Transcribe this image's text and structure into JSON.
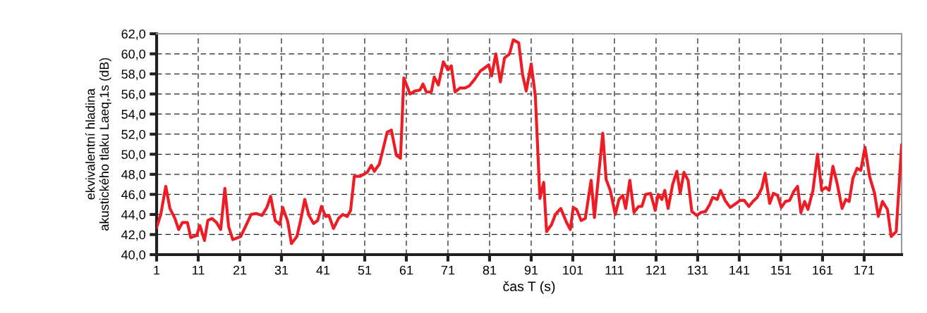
{
  "chart_data": {
    "type": "line",
    "xlabel": "čas T (s)",
    "ylabel": "ekvivalentní hladina\nakustického tlaku Laeq,1s (dB)",
    "xlim": [
      1,
      180
    ],
    "xticks": [
      1,
      11,
      21,
      31,
      41,
      51,
      61,
      71,
      81,
      91,
      101,
      111,
      121,
      131,
      141,
      151,
      161,
      171
    ],
    "ylim": [
      40,
      62
    ],
    "yticks": [
      {
        "value": 40,
        "label": "40,0"
      },
      {
        "value": 42,
        "label": "42,0"
      },
      {
        "value": 44,
        "label": "44,0"
      },
      {
        "value": 46,
        "label": "46,0"
      },
      {
        "value": 48,
        "label": "48,0"
      },
      {
        "value": 50,
        "label": "50,0"
      },
      {
        "value": 52,
        "label": "52,0"
      },
      {
        "value": 54,
        "label": "54,0"
      },
      {
        "value": 56,
        "label": "56,0"
      },
      {
        "value": 58,
        "label": "58,0"
      },
      {
        "value": 60,
        "label": "60,0"
      },
      {
        "value": 62,
        "label": "62,0"
      }
    ],
    "grid": true,
    "marker": "none",
    "line_style": "solid",
    "series": [
      {
        "color": "#ee1c25",
        "x": [
          1,
          2,
          3.2,
          4.2,
          5.4,
          6.3,
          7.2,
          8.4,
          9.2,
          10.6,
          11.4,
          12.5,
          13.3,
          14.3,
          15.4,
          16.4,
          17.4,
          18.3,
          19.3,
          21.2,
          22.7,
          23.7,
          24.9,
          26.3,
          27.5,
          28.4,
          29.5,
          30.6,
          31.3,
          32.5,
          33.4,
          34.7,
          35.5,
          36.6,
          37.6,
          38.7,
          39.7,
          40.6,
          41.6,
          42.4,
          43.5,
          44.7,
          45.7,
          46.8,
          47.6,
          48.5,
          49.9,
          51.6,
          52.6,
          53.3,
          54.5,
          55.4,
          56.4,
          57.4,
          58.6,
          59.6,
          60.4,
          61.9,
          63.1,
          64.3,
          65.0,
          65.8,
          67.0,
          67.7,
          68.7,
          69.9,
          71.0,
          71.8,
          72.7,
          73.9,
          75.1,
          76.1,
          77.3,
          78.8,
          79.5,
          80.8,
          81.5,
          82.5,
          83.6,
          84.6,
          85.8,
          86.7,
          88.0,
          88.9,
          89.8,
          91.0,
          92.0,
          93.1,
          94.0,
          94.7,
          95.9,
          96.8,
          98.1,
          99.5,
          100.4,
          101.1,
          101.9,
          103.0,
          104.0,
          105.4,
          106.2,
          108.2,
          109.0,
          110.0,
          111.2,
          112.1,
          113.0,
          113.7,
          114.7,
          115.7,
          116.8,
          117.6,
          118.5,
          119.7,
          120.8,
          121.5,
          122.4,
          123.1,
          123.9,
          125.0,
          126.0,
          126.8,
          127.7,
          128.7,
          129.6,
          130.8,
          131.8,
          132.9,
          133.9,
          134.6,
          135.7,
          136.5,
          137.6,
          138.8,
          140.2,
          141.2,
          142.2,
          143.3,
          144.3,
          145.3,
          146.4,
          147.2,
          148.3,
          149.2,
          150.2,
          151.1,
          152.1,
          153.1,
          154.1,
          155.0,
          155.8,
          156.7,
          157.5,
          158.7,
          159.8,
          160.8,
          161.8,
          162.6,
          163.5,
          164.5,
          165.7,
          166.6,
          167.4,
          168.3,
          169.3,
          170.2,
          171.2,
          172.3,
          173.5,
          174.4,
          175.4,
          176.6,
          177.5,
          178.7,
          180
        ],
        "values": [
          42.7,
          44.0,
          46.8,
          44.6,
          43.6,
          42.5,
          43.2,
          43.2,
          41.7,
          41.9,
          42.9,
          41.4,
          43.4,
          43.6,
          43.2,
          42.5,
          46.6,
          42.8,
          41.5,
          41.8,
          43.1,
          44.0,
          44.1,
          43.9,
          44.7,
          45.8,
          43.4,
          43.0,
          44.7,
          43.3,
          41.1,
          41.8,
          43.2,
          45.5,
          43.9,
          43.1,
          43.4,
          44.8,
          43.8,
          43.9,
          42.6,
          43.6,
          44.0,
          43.8,
          44.4,
          47.8,
          47.8,
          48.2,
          48.9,
          48.3,
          49.0,
          50.5,
          52.2,
          52.4,
          49.9,
          49.6,
          57.6,
          56.0,
          56.3,
          56.4,
          57.0,
          56.2,
          56.2,
          57.7,
          56.9,
          59.2,
          58.4,
          58.8,
          56.2,
          56.6,
          56.6,
          56.8,
          57.4,
          58.3,
          58.5,
          58.9,
          57.8,
          60.0,
          57.2,
          59.6,
          60.0,
          61.4,
          61.1,
          58.0,
          56.3,
          59.0,
          55.8,
          45.6,
          47.2,
          42.3,
          43.0,
          44.0,
          44.6,
          43.2,
          42.5,
          44.7,
          44.5,
          43.4,
          43.6,
          47.4,
          43.7,
          52.1,
          47.5,
          46.4,
          44.0,
          45.5,
          45.9,
          44.6,
          47.4,
          44.2,
          44.8,
          44.8,
          46.0,
          46.1,
          44.4,
          46.0,
          45.5,
          46.4,
          44.6,
          47.0,
          48.3,
          46.1,
          48.2,
          47.4,
          44.3,
          43.9,
          44.2,
          44.3,
          45.0,
          45.7,
          45.5,
          46.4,
          45.4,
          44.7,
          45.1,
          45.4,
          45.4,
          44.8,
          45.3,
          45.7,
          46.6,
          48.1,
          45.1,
          46.1,
          45.9,
          44.7,
          45.3,
          45.4,
          46.3,
          46.8,
          44.2,
          45.3,
          44.5,
          46.4,
          50.0,
          46.4,
          46.7,
          46.4,
          48.8,
          47.1,
          44.6,
          45.5,
          45.3,
          47.6,
          48.6,
          48.4,
          50.7,
          47.8,
          46.1,
          43.8,
          45.3,
          44.5,
          41.8,
          42.3,
          50.9
        ]
      }
    ]
  }
}
